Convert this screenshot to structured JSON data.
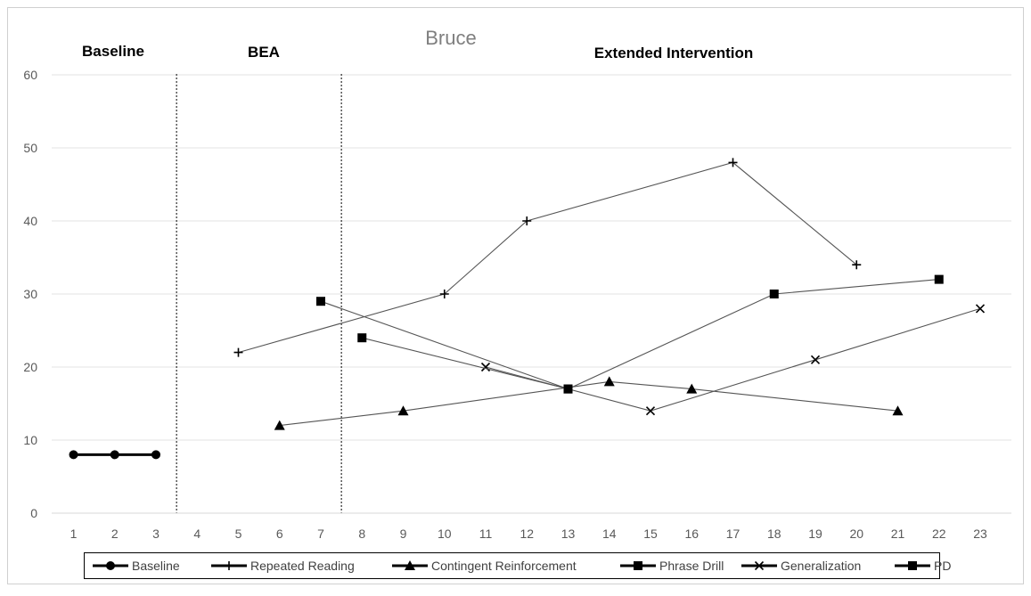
{
  "chart_data": {
    "type": "line",
    "title": "Bruce",
    "xlabel": "",
    "ylabel": "",
    "ylim": [
      0,
      60
    ],
    "yticks": [
      0,
      10,
      20,
      30,
      40,
      50,
      60
    ],
    "x_categories": [
      "1",
      "2",
      "3",
      "4",
      "5",
      "6",
      "7",
      "8",
      "9",
      "10",
      "11",
      "12",
      "13",
      "14",
      "15",
      "16",
      "17",
      "18",
      "19",
      "20",
      "21",
      "22",
      "23"
    ],
    "grid": "horizontal",
    "legend_position": "bottom",
    "phases": [
      {
        "label": "Baseline"
      },
      {
        "label": "BEA"
      },
      {
        "label": "Extended Intervention"
      }
    ],
    "phase_dividers_after": [
      "3",
      "7"
    ],
    "series": [
      {
        "name": "Baseline",
        "marker": "circle",
        "connected": true,
        "points": [
          {
            "x": "1",
            "y": 8
          },
          {
            "x": "2",
            "y": 8
          },
          {
            "x": "3",
            "y": 8
          }
        ]
      },
      {
        "name": "Repeated Reading",
        "marker": "plus",
        "connected": true,
        "points": [
          {
            "x": "5",
            "y": 22
          },
          {
            "x": "10",
            "y": 30
          },
          {
            "x": "12",
            "y": 40
          },
          {
            "x": "17",
            "y": 48
          },
          {
            "x": "20",
            "y": 34
          }
        ]
      },
      {
        "name": "Contingent Reinforcement",
        "marker": "triangle",
        "connected": true,
        "points": [
          {
            "x": "6",
            "y": 12
          },
          {
            "x": "9",
            "y": 14
          },
          {
            "x": "14",
            "y": 18
          },
          {
            "x": "16",
            "y": 17
          },
          {
            "x": "21",
            "y": 14
          }
        ]
      },
      {
        "name": "Phrase Drill",
        "marker": "square",
        "connected": true,
        "points": [
          {
            "x": "7",
            "y": 29
          },
          {
            "x": "13",
            "y": 17
          },
          {
            "x": "18",
            "y": 30
          },
          {
            "x": "22",
            "y": 32
          }
        ]
      },
      {
        "name": "Generalization",
        "marker": "x",
        "connected": true,
        "points": [
          {
            "x": "11",
            "y": 20
          },
          {
            "x": "15",
            "y": 14
          },
          {
            "x": "19",
            "y": 21
          },
          {
            "x": "23",
            "y": 28
          }
        ]
      },
      {
        "name": "PD",
        "marker": "square",
        "connected": true,
        "points": [
          {
            "x": "8",
            "y": 24
          },
          {
            "x": "13",
            "y": 17
          }
        ]
      }
    ]
  }
}
